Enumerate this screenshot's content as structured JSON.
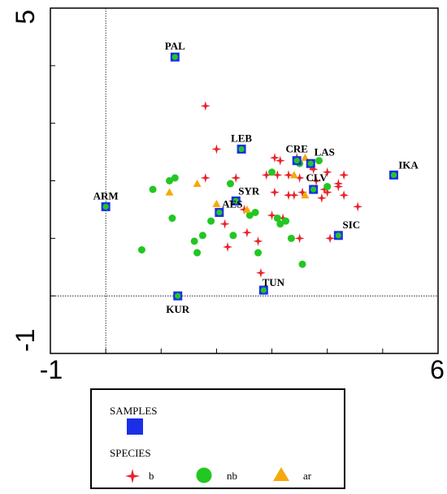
{
  "chart_data": {
    "type": "scatter",
    "title": "",
    "xlabel": "",
    "ylabel": "",
    "xlim": [
      -1,
      6
    ],
    "ylim": [
      -1,
      5
    ],
    "x_ticks": [
      "-1",
      "6"
    ],
    "y_ticks": [
      "5",
      "-1"
    ],
    "reference_lines": {
      "x": 0,
      "y": 0
    },
    "colors": {
      "b": "#e8232a",
      "nb": "#22c722",
      "ar": "#f5a90c",
      "samples": "#1c2fe8"
    },
    "samples": [
      {
        "label": "PAL",
        "x": 1.25,
        "y": 4.15
      },
      {
        "label": "LEB",
        "x": 2.45,
        "y": 2.55
      },
      {
        "label": "CRE",
        "x": 3.45,
        "y": 2.35
      },
      {
        "label": "LAS",
        "x": 3.7,
        "y": 2.3
      },
      {
        "label": "CLV",
        "x": 3.75,
        "y": 1.85
      },
      {
        "label": "IKA",
        "x": 5.2,
        "y": 2.1
      },
      {
        "label": "ARM",
        "x": 0.0,
        "y": 1.55
      },
      {
        "label": "SYR",
        "x": 2.35,
        "y": 1.65
      },
      {
        "label": "AES",
        "x": 2.05,
        "y": 1.45
      },
      {
        "label": "SIC",
        "x": 4.2,
        "y": 1.05
      },
      {
        "label": "TUN",
        "x": 2.85,
        "y": 0.1
      },
      {
        "label": "KUR",
        "x": 1.3,
        "y": 0.0
      }
    ],
    "series": [
      {
        "name": "b",
        "points": [
          [
            1.8,
            3.3
          ],
          [
            2.0,
            2.55
          ],
          [
            3.05,
            2.4
          ],
          [
            3.15,
            2.35
          ],
          [
            3.45,
            2.4
          ],
          [
            3.7,
            2.25
          ],
          [
            3.75,
            2.2
          ],
          [
            1.8,
            2.05
          ],
          [
            2.35,
            2.05
          ],
          [
            2.9,
            2.1
          ],
          [
            3.1,
            2.1
          ],
          [
            3.3,
            2.1
          ],
          [
            3.5,
            2.05
          ],
          [
            3.8,
            2.0
          ],
          [
            4.0,
            2.15
          ],
          [
            4.3,
            2.1
          ],
          [
            4.2,
            1.95
          ],
          [
            3.95,
            1.85
          ],
          [
            4.0,
            1.8
          ],
          [
            4.2,
            1.9
          ],
          [
            3.9,
            1.7
          ],
          [
            4.3,
            1.75
          ],
          [
            3.05,
            1.8
          ],
          [
            3.3,
            1.75
          ],
          [
            3.55,
            1.8
          ],
          [
            3.4,
            1.75
          ],
          [
            2.3,
            1.65
          ],
          [
            2.5,
            1.5
          ],
          [
            4.55,
            1.55
          ],
          [
            3.0,
            1.4
          ],
          [
            3.2,
            1.35
          ],
          [
            2.15,
            1.25
          ],
          [
            2.55,
            1.1
          ],
          [
            3.5,
            1.0
          ],
          [
            4.05,
            1.0
          ],
          [
            2.75,
            0.95
          ],
          [
            2.2,
            0.85
          ],
          [
            2.8,
            0.4
          ]
        ]
      },
      {
        "name": "nb",
        "points": [
          [
            1.25,
            2.05
          ],
          [
            1.15,
            2.0
          ],
          [
            0.85,
            1.85
          ],
          [
            2.25,
            1.95
          ],
          [
            3.0,
            2.15
          ],
          [
            3.85,
            2.35
          ],
          [
            4.0,
            1.9
          ],
          [
            3.5,
            2.3
          ],
          [
            2.7,
            1.45
          ],
          [
            2.6,
            1.4
          ],
          [
            3.1,
            1.35
          ],
          [
            3.25,
            1.3
          ],
          [
            1.2,
            1.35
          ],
          [
            1.9,
            1.3
          ],
          [
            3.15,
            1.25
          ],
          [
            3.35,
            1.0
          ],
          [
            1.75,
            1.05
          ],
          [
            1.6,
            0.95
          ],
          [
            2.3,
            1.05
          ],
          [
            0.65,
            0.8
          ],
          [
            1.65,
            0.75
          ],
          [
            2.75,
            0.75
          ],
          [
            3.55,
            0.55
          ]
        ]
      },
      {
        "name": "ar",
        "points": [
          [
            1.15,
            1.8
          ],
          [
            1.65,
            1.95
          ],
          [
            3.4,
            2.1
          ],
          [
            3.6,
            2.4
          ],
          [
            3.6,
            1.75
          ],
          [
            2.0,
            1.6
          ],
          [
            2.55,
            1.5
          ]
        ]
      }
    ]
  },
  "legend": {
    "samples_title": "SAMPLES",
    "species_title": "SPECIES",
    "items": [
      {
        "label": "b",
        "symbol": "star-icon"
      },
      {
        "label": "nb",
        "symbol": "circle-icon"
      },
      {
        "label": "ar",
        "symbol": "triangle-icon"
      }
    ]
  }
}
